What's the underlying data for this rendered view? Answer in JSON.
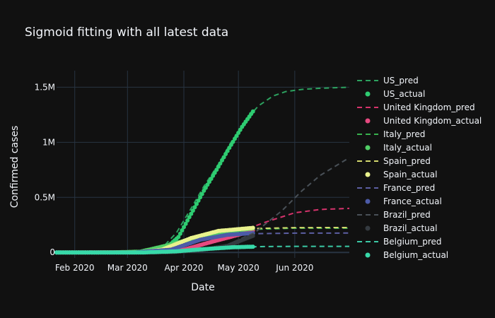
{
  "chart_data": {
    "type": "line",
    "title": "Sigmoid fitting with all latest data",
    "xlabel": "Date",
    "ylabel": "Confirmed cases",
    "x_ticks": [
      {
        "date": "2020-02-01",
        "label": "Feb 2020"
      },
      {
        "date": "2020-03-01",
        "label": "Mar 2020"
      },
      {
        "date": "2020-04-01",
        "label": "Apr 2020"
      },
      {
        "date": "2020-05-01",
        "label": "May 2020"
      },
      {
        "date": "2020-06-01",
        "label": "Jun 2020"
      }
    ],
    "y_ticks": [
      {
        "value": 0,
        "label": "0"
      },
      {
        "value": 500000,
        "label": "0.5M"
      },
      {
        "value": 1000000,
        "label": "1M"
      },
      {
        "value": 1500000,
        "label": "1.5M"
      }
    ],
    "xlim": [
      "2020-01-22",
      "2020-07-01"
    ],
    "ylim": [
      -50000,
      1650000
    ],
    "grid": true,
    "legend_position": "right",
    "background": "#111111",
    "series": [
      {
        "name": "US_pred",
        "mode": "dashed",
        "color": "#2ca25f",
        "x": [
          "2020-01-22",
          "2020-02-15",
          "2020-03-10",
          "2020-03-20",
          "2020-03-28",
          "2020-04-05",
          "2020-04-12",
          "2020-04-20",
          "2020-04-27",
          "2020-05-05",
          "2020-05-12",
          "2020-05-20",
          "2020-05-27",
          "2020-06-05",
          "2020-06-15",
          "2020-07-01"
        ],
        "y": [
          0,
          0,
          5000,
          40000,
          180000,
          400000,
          600000,
          800000,
          1000000,
          1200000,
          1330000,
          1420000,
          1460000,
          1480000,
          1490000,
          1500000
        ]
      },
      {
        "name": "US_actual",
        "mode": "markers",
        "color": "#2ecc71",
        "x": [
          "2020-01-22",
          "2020-03-01",
          "2020-03-15",
          "2020-03-22",
          "2020-03-29",
          "2020-04-05",
          "2020-04-12",
          "2020-04-19",
          "2020-04-26",
          "2020-05-03",
          "2020-05-09"
        ],
        "y": [
          0,
          0,
          3000,
          35000,
          140000,
          350000,
          560000,
          750000,
          950000,
          1140000,
          1280000
        ]
      },
      {
        "name": "United Kingdom_pred",
        "mode": "dashed",
        "color": "#d6336c",
        "x": [
          "2020-01-22",
          "2020-03-15",
          "2020-04-01",
          "2020-04-15",
          "2020-05-01",
          "2020-05-15",
          "2020-06-01",
          "2020-06-15",
          "2020-07-01"
        ],
        "y": [
          0,
          2000,
          30000,
          100000,
          180000,
          270000,
          360000,
          390000,
          400000
        ]
      },
      {
        "name": "United Kingdom_actual",
        "mode": "markers",
        "color": "#e64980",
        "x": [
          "2020-01-22",
          "2020-03-15",
          "2020-04-01",
          "2020-04-15",
          "2020-05-01",
          "2020-05-09"
        ],
        "y": [
          0,
          1000,
          25000,
          90000,
          160000,
          200000
        ]
      },
      {
        "name": "Italy_pred",
        "mode": "dashed",
        "color": "#37b24d",
        "x": [
          "2020-01-22",
          "2020-02-20",
          "2020-03-10",
          "2020-03-25",
          "2020-04-10",
          "2020-04-25",
          "2020-05-10",
          "2020-06-01",
          "2020-07-01"
        ],
        "y": [
          0,
          0,
          10000,
          70000,
          140000,
          190000,
          210000,
          220000,
          220000
        ]
      },
      {
        "name": "Italy_actual",
        "mode": "markers",
        "color": "#51cf66",
        "x": [
          "2020-01-22",
          "2020-02-22",
          "2020-03-08",
          "2020-03-22",
          "2020-04-08",
          "2020-04-22",
          "2020-05-09"
        ],
        "y": [
          0,
          100,
          7000,
          60000,
          135000,
          185000,
          218000
        ]
      },
      {
        "name": "Spain_pred",
        "mode": "dashed",
        "color": "#d4d96e",
        "x": [
          "2020-01-22",
          "2020-03-05",
          "2020-03-20",
          "2020-04-05",
          "2020-04-20",
          "2020-05-05",
          "2020-06-01",
          "2020-07-01"
        ],
        "y": [
          0,
          0,
          30000,
          130000,
          190000,
          215000,
          225000,
          226000
        ]
      },
      {
        "name": "Spain_actual",
        "mode": "markers",
        "color": "#e9f28d",
        "x": [
          "2020-01-22",
          "2020-03-08",
          "2020-03-20",
          "2020-04-05",
          "2020-04-20",
          "2020-05-09"
        ],
        "y": [
          0,
          700,
          25000,
          130000,
          195000,
          223000
        ]
      },
      {
        "name": "France_pred",
        "mode": "dashed",
        "color": "#5c5fa3",
        "x": [
          "2020-01-22",
          "2020-03-05",
          "2020-03-25",
          "2020-04-10",
          "2020-04-25",
          "2020-05-10",
          "2020-06-01",
          "2020-07-01"
        ],
        "y": [
          0,
          0,
          30000,
          110000,
          150000,
          170000,
          175000,
          176000
        ]
      },
      {
        "name": "France_actual",
        "mode": "markers",
        "color": "#4c5ba8",
        "x": [
          "2020-01-22",
          "2020-03-05",
          "2020-03-25",
          "2020-04-10",
          "2020-04-25",
          "2020-05-09"
        ],
        "y": [
          0,
          300,
          25000,
          115000,
          160000,
          175000
        ]
      },
      {
        "name": "Brazil_pred",
        "mode": "dashed",
        "color": "#495057",
        "x": [
          "2020-01-22",
          "2020-03-20",
          "2020-04-10",
          "2020-04-25",
          "2020-05-10",
          "2020-05-25",
          "2020-06-05",
          "2020-06-15",
          "2020-06-25",
          "2020-07-01"
        ],
        "y": [
          0,
          0,
          20000,
          70000,
          180000,
          380000,
          560000,
          700000,
          800000,
          860000
        ]
      },
      {
        "name": "Brazil_actual",
        "mode": "markers",
        "color": "#343a40",
        "x": [
          "2020-01-22",
          "2020-03-10",
          "2020-03-25",
          "2020-04-10",
          "2020-04-25",
          "2020-05-09"
        ],
        "y": [
          0,
          30,
          2500,
          20000,
          60000,
          150000
        ]
      },
      {
        "name": "Belgium_pred",
        "mode": "dashed",
        "color": "#3bc9a5",
        "x": [
          "2020-01-22",
          "2020-03-10",
          "2020-03-28",
          "2020-04-12",
          "2020-04-28",
          "2020-05-15",
          "2020-06-01",
          "2020-07-01"
        ],
        "y": [
          0,
          0,
          10000,
          30000,
          46000,
          53000,
          55000,
          55000
        ]
      },
      {
        "name": "Belgium_actual",
        "mode": "markers",
        "color": "#38d9a9",
        "x": [
          "2020-01-22",
          "2020-03-10",
          "2020-03-28",
          "2020-04-12",
          "2020-04-28",
          "2020-05-09"
        ],
        "y": [
          0,
          200,
          10000,
          30000,
          47000,
          52000
        ]
      }
    ]
  }
}
